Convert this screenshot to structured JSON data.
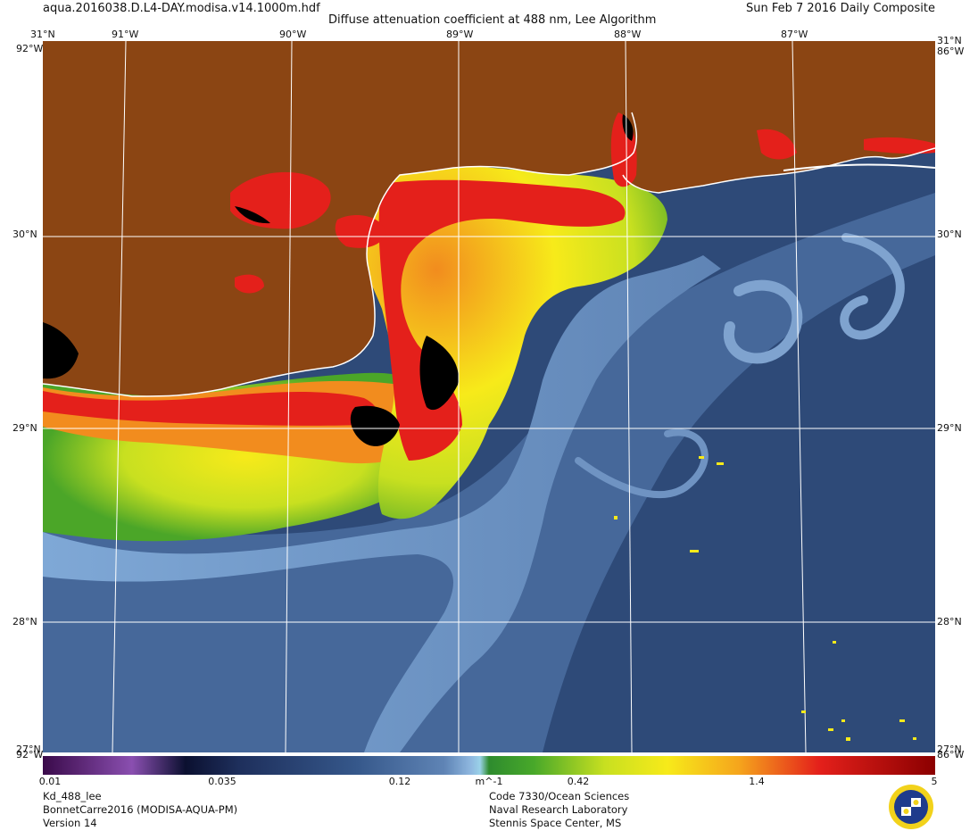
{
  "header": {
    "filename": "aqua.2016038.D.L4-DAY.modisa.v14.1000m.hdf",
    "title": "Diffuse attenuation coefficient at 488 nm, Lee Algorithm",
    "date": "Sun Feb  7 2016 Daily Composite"
  },
  "map": {
    "lon_labels": [
      "91°W",
      "90°W",
      "89°W",
      "88°W",
      "87°W"
    ],
    "lat_labels": [
      "30°N",
      "29°N",
      "28°N"
    ],
    "corner_labels": {
      "top_left_lat": "31°N",
      "top_left_lon": "92°W",
      "top_right_lat": "31°N",
      "top_right_lon": "86°W",
      "bottom_left_lat": "27°N",
      "bottom_left_lon": "92°W",
      "bottom_right_lat": "27°N",
      "bottom_right_lon": "86°W"
    },
    "colors": {
      "land": "#8B4513",
      "deep_water": "#2E4A78",
      "mid_water": "#4A6C9E",
      "light_water": "#8FB3DA",
      "green": "#4BA628",
      "yellow_green": "#C8E020",
      "yellow": "#F7EA1A",
      "orange": "#F28C1E",
      "red": "#E4201B",
      "black": "#000000",
      "grid": "#FFFFFF"
    }
  },
  "colorbar": {
    "ticks": [
      "0.01",
      "0.035",
      "0.12",
      "m^-1",
      "0.42",
      "1.4",
      "5"
    ],
    "scale": "log",
    "range": [
      0.01,
      5
    ]
  },
  "footer": {
    "left": [
      "Kd_488_lee",
      "BonnetCarre2016 (MODISA-AQUA-PM)",
      "Version 14"
    ],
    "center": [
      "Code 7330/Ocean Sciences",
      "Naval Research Laboratory",
      "Stennis Space Center, MS"
    ]
  }
}
